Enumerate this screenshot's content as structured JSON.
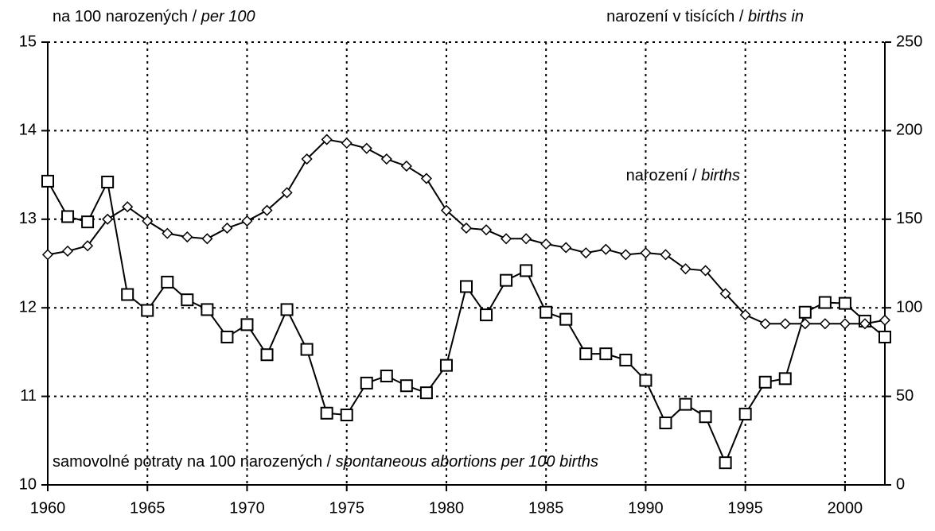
{
  "chart_data": {
    "type": "line",
    "left_axis_label": {
      "text": "na 100 narozených / ",
      "italic": "per 100"
    },
    "right_axis_label": {
      "text": "narození v tisících / ",
      "italic": "births in"
    },
    "annotations": [
      {
        "text": "narození / ",
        "italic": "births",
        "series": 1
      },
      {
        "text": "samovolné potraty na 100 narozených / ",
        "italic": "spontaneous abortions per 100 births",
        "series": 0
      }
    ],
    "x": [
      1960,
      1961,
      1962,
      1963,
      1964,
      1965,
      1966,
      1967,
      1968,
      1969,
      1970,
      1971,
      1972,
      1973,
      1974,
      1975,
      1976,
      1977,
      1978,
      1979,
      1980,
      1981,
      1982,
      1983,
      1984,
      1985,
      1986,
      1987,
      1988,
      1989,
      1990,
      1991,
      1992,
      1993,
      1994,
      1995,
      1996,
      1997,
      1998,
      1999,
      2000,
      2001,
      2002
    ],
    "series": [
      {
        "color": "#000000",
        "marker": "square",
        "axis": "y",
        "values": [
          13.43,
          13.03,
          12.97,
          13.42,
          12.15,
          11.97,
          12.29,
          12.09,
          11.98,
          11.67,
          11.81,
          11.47,
          11.98,
          11.53,
          10.81,
          10.79,
          11.15,
          11.23,
          11.12,
          11.04,
          11.35,
          12.24,
          11.92,
          12.31,
          12.42,
          11.95,
          11.87,
          11.48,
          11.48,
          11.41,
          11.18,
          10.7,
          10.91,
          10.77,
          10.25,
          10.8,
          11.16,
          11.2,
          11.95,
          12.06,
          12.05,
          11.85,
          11.67
        ]
      },
      {
        "color": "#000000",
        "marker": "diamond",
        "axis": "y2",
        "values": [
          130,
          132,
          135,
          150,
          157,
          149,
          142,
          140,
          139,
          145,
          149,
          155,
          165,
          184,
          195,
          193,
          190,
          184,
          180,
          173,
          155,
          145,
          144,
          139,
          139,
          136,
          134,
          131,
          133,
          130,
          131,
          130,
          122,
          121,
          108,
          96,
          91,
          91,
          91,
          91,
          91,
          91,
          93
        ]
      }
    ],
    "xlim": [
      1960,
      2002
    ],
    "xticks": [
      1960,
      1965,
      1970,
      1975,
      1980,
      1985,
      1990,
      1995,
      2000
    ],
    "ylim": [
      10,
      15
    ],
    "yticks": [
      10,
      11,
      12,
      13,
      14,
      15
    ],
    "y2lim": [
      0,
      250
    ],
    "y2ticks": [
      0,
      50,
      100,
      150,
      200,
      250
    ],
    "grid": true
  }
}
